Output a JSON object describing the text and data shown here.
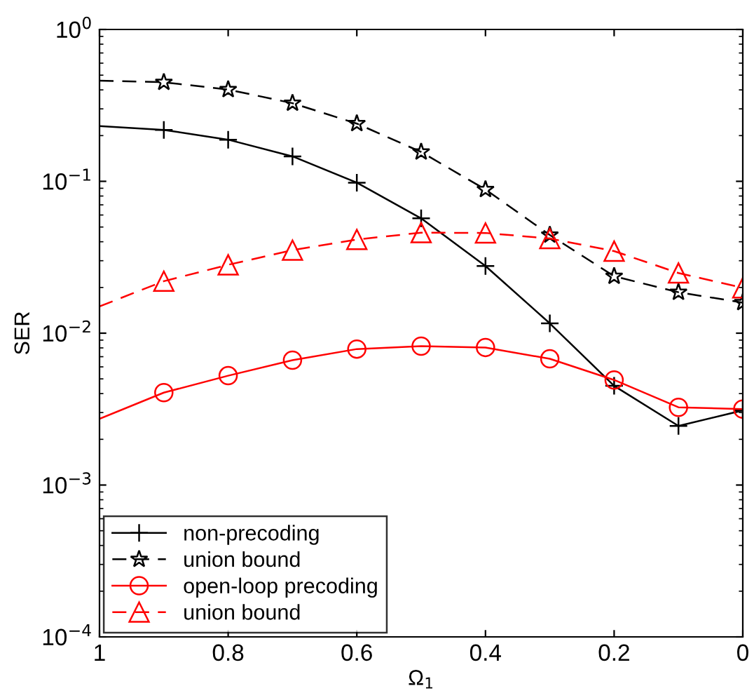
{
  "chart_data": {
    "type": "line",
    "xlabel": "Ω$_{1}$",
    "ylabel": "SER",
    "x": [
      1,
      0.9,
      0.8,
      0.7,
      0.6,
      0.5,
      0.4,
      0.3,
      0.2,
      0.1,
      0
    ],
    "series": [
      {
        "name": "non-precoding",
        "color": "#000000",
        "marker": "cross",
        "line_style": "solid",
        "values": [
          0.231,
          0.218,
          0.188,
          0.146,
          0.098,
          0.057,
          0.0277,
          0.0116,
          0.0045,
          0.00245,
          0.0031
        ]
      },
      {
        "name": "union bound",
        "color": "#000000",
        "marker": "star",
        "line_style": "dashed",
        "values": [
          0.46,
          0.449,
          0.402,
          0.327,
          0.24,
          0.156,
          0.0883,
          0.0443,
          0.0237,
          0.0186,
          0.0159
        ]
      },
      {
        "name": "open-loop precoding",
        "color": "#ff0000",
        "marker": "circle",
        "line_style": "solid",
        "values": [
          0.00273,
          0.00406,
          0.00525,
          0.00664,
          0.00786,
          0.00822,
          0.00805,
          0.00678,
          0.00492,
          0.00325,
          0.00316
        ]
      },
      {
        "name": "union bound",
        "color": "#ff0000",
        "marker": "triangle",
        "line_style": "dashed",
        "values": [
          0.015,
          0.022,
          0.0282,
          0.0352,
          0.0414,
          0.0459,
          0.0457,
          0.042,
          0.0347,
          0.0249,
          0.0199
        ]
      }
    ],
    "log": "y",
    "xlim": [
      1,
      0
    ],
    "ylim": [
      0.0001,
      1
    ],
    "xticks": [
      1,
      0.8,
      0.6,
      0.4,
      0.2,
      0
    ],
    "yticks": [
      {
        "value": 0.0001,
        "label": "10$^{−4}$"
      },
      {
        "value": 0.001,
        "label": "10$^{−3}$"
      },
      {
        "value": 0.01,
        "label": "10$^{−2}$"
      },
      {
        "value": 0.1,
        "label": "10$^{−1}$"
      },
      {
        "value": 1,
        "label": "10$^{0}$"
      }
    ],
    "grid": false,
    "legend": "bottom left"
  }
}
